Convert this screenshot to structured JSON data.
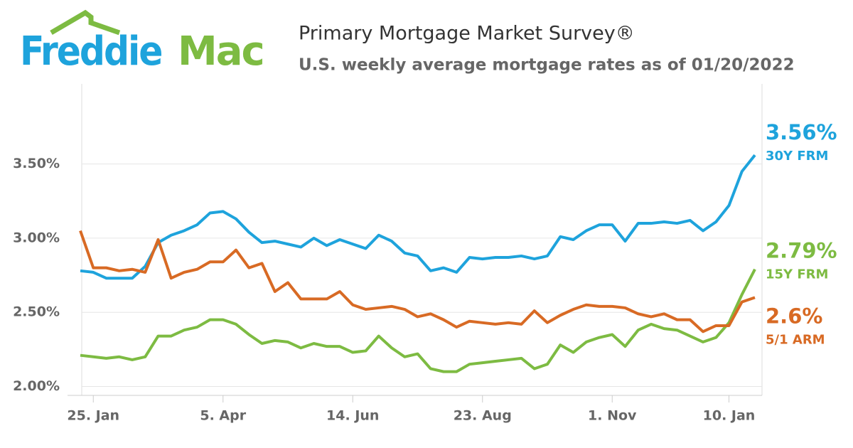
{
  "brand": {
    "first": "Freddie",
    "second": "Mac"
  },
  "chart_data": {
    "type": "line",
    "title": "Primary Mortgage Market Survey®",
    "subtitle": "U.S. weekly average mortgage rates as of 01/20/2022",
    "categories": [
      null,
      "25. Jan",
      null,
      null,
      null,
      null,
      null,
      null,
      null,
      null,
      null,
      "5. Apr",
      null,
      null,
      null,
      null,
      null,
      null,
      null,
      null,
      null,
      "14. Jun",
      null,
      null,
      null,
      null,
      null,
      null,
      null,
      null,
      null,
      "23. Aug",
      null,
      null,
      null,
      null,
      null,
      null,
      null,
      null,
      null,
      "1. Nov",
      null,
      null,
      null,
      null,
      null,
      null,
      null,
      null,
      "10. Jan",
      null,
      null
    ],
    "series": [
      {
        "name": "30Y FRM",
        "color": "#1ea3dc",
        "values": [
          2.78,
          2.77,
          2.73,
          2.73,
          2.73,
          2.81,
          2.97,
          3.02,
          3.05,
          3.09,
          3.17,
          3.18,
          3.13,
          3.04,
          2.97,
          2.98,
          2.96,
          2.94,
          3.0,
          2.95,
          2.99,
          2.96,
          2.93,
          3.02,
          2.98,
          2.9,
          2.88,
          2.78,
          2.8,
          2.77,
          2.87,
          2.86,
          2.87,
          2.87,
          2.88,
          2.86,
          2.88,
          3.01,
          2.99,
          3.05,
          3.09,
          3.09,
          2.98,
          3.1,
          3.1,
          3.11,
          3.1,
          3.12,
          3.05,
          3.11,
          3.22,
          3.45,
          3.56
        ],
        "value_labels": [
          null,
          null,
          null,
          null,
          null,
          null,
          null,
          null,
          null,
          null,
          null,
          null,
          null,
          null,
          null,
          null,
          null,
          null,
          null,
          null,
          null,
          null,
          null,
          null,
          null,
          null,
          null,
          null,
          null,
          null,
          null,
          null,
          null,
          null,
          null,
          null,
          null,
          null,
          null,
          null,
          null,
          null,
          null,
          null,
          null,
          null,
          null,
          null,
          null,
          null,
          null,
          null,
          "3.56%"
        ]
      },
      {
        "name": "15Y FRM",
        "color": "#7dbb42",
        "values": [
          2.21,
          2.2,
          2.19,
          2.2,
          2.18,
          2.2,
          2.34,
          2.34,
          2.38,
          2.4,
          2.45,
          2.45,
          2.42,
          2.35,
          2.29,
          2.31,
          2.3,
          2.26,
          2.29,
          2.27,
          2.27,
          2.23,
          2.24,
          2.34,
          2.26,
          2.2,
          2.22,
          2.12,
          2.1,
          2.1,
          2.15,
          2.16,
          2.17,
          2.18,
          2.19,
          2.12,
          2.15,
          2.28,
          2.23,
          2.3,
          2.33,
          2.35,
          2.27,
          2.38,
          2.42,
          2.39,
          2.38,
          2.34,
          2.3,
          2.33,
          2.43,
          2.62,
          2.79
        ],
        "value_labels": [
          null,
          null,
          null,
          null,
          null,
          null,
          null,
          null,
          null,
          null,
          null,
          null,
          null,
          null,
          null,
          null,
          null,
          null,
          null,
          null,
          null,
          null,
          null,
          null,
          null,
          null,
          null,
          null,
          null,
          null,
          null,
          null,
          null,
          null,
          null,
          null,
          null,
          null,
          null,
          null,
          null,
          null,
          null,
          null,
          null,
          null,
          null,
          null,
          null,
          null,
          null,
          null,
          "2.79%"
        ]
      },
      {
        "name": "5/1 ARM",
        "color": "#d86a24",
        "values": [
          3.05,
          2.8,
          2.8,
          2.78,
          2.79,
          2.77,
          2.99,
          2.73,
          2.77,
          2.79,
          2.84,
          2.84,
          2.92,
          2.8,
          2.83,
          2.64,
          2.7,
          2.59,
          2.59,
          2.59,
          2.64,
          2.55,
          2.52,
          2.53,
          2.54,
          2.52,
          2.47,
          2.49,
          2.45,
          2.4,
          2.44,
          2.43,
          2.42,
          2.43,
          2.42,
          2.51,
          2.43,
          2.48,
          2.52,
          2.55,
          2.54,
          2.54,
          2.53,
          2.49,
          2.47,
          2.49,
          2.45,
          2.45,
          2.37,
          2.41,
          2.41,
          2.57,
          2.6
        ],
        "value_labels": [
          null,
          null,
          null,
          null,
          null,
          null,
          null,
          null,
          null,
          null,
          null,
          null,
          null,
          null,
          null,
          null,
          null,
          null,
          null,
          null,
          null,
          null,
          null,
          null,
          null,
          null,
          null,
          null,
          null,
          null,
          null,
          null,
          null,
          null,
          null,
          null,
          null,
          null,
          null,
          null,
          null,
          null,
          null,
          null,
          null,
          null,
          null,
          null,
          null,
          null,
          null,
          null,
          "2.6%"
        ]
      }
    ],
    "ylim": [
      1.94,
      4.04
    ],
    "yticks": [
      {
        "value": 2,
        "label": "2.00%"
      },
      {
        "value": 2.5,
        "label": "2.50%"
      },
      {
        "value": 3,
        "label": "3.00%"
      },
      {
        "value": 3.5,
        "label": "3.50%"
      }
    ],
    "grid": true
  }
}
